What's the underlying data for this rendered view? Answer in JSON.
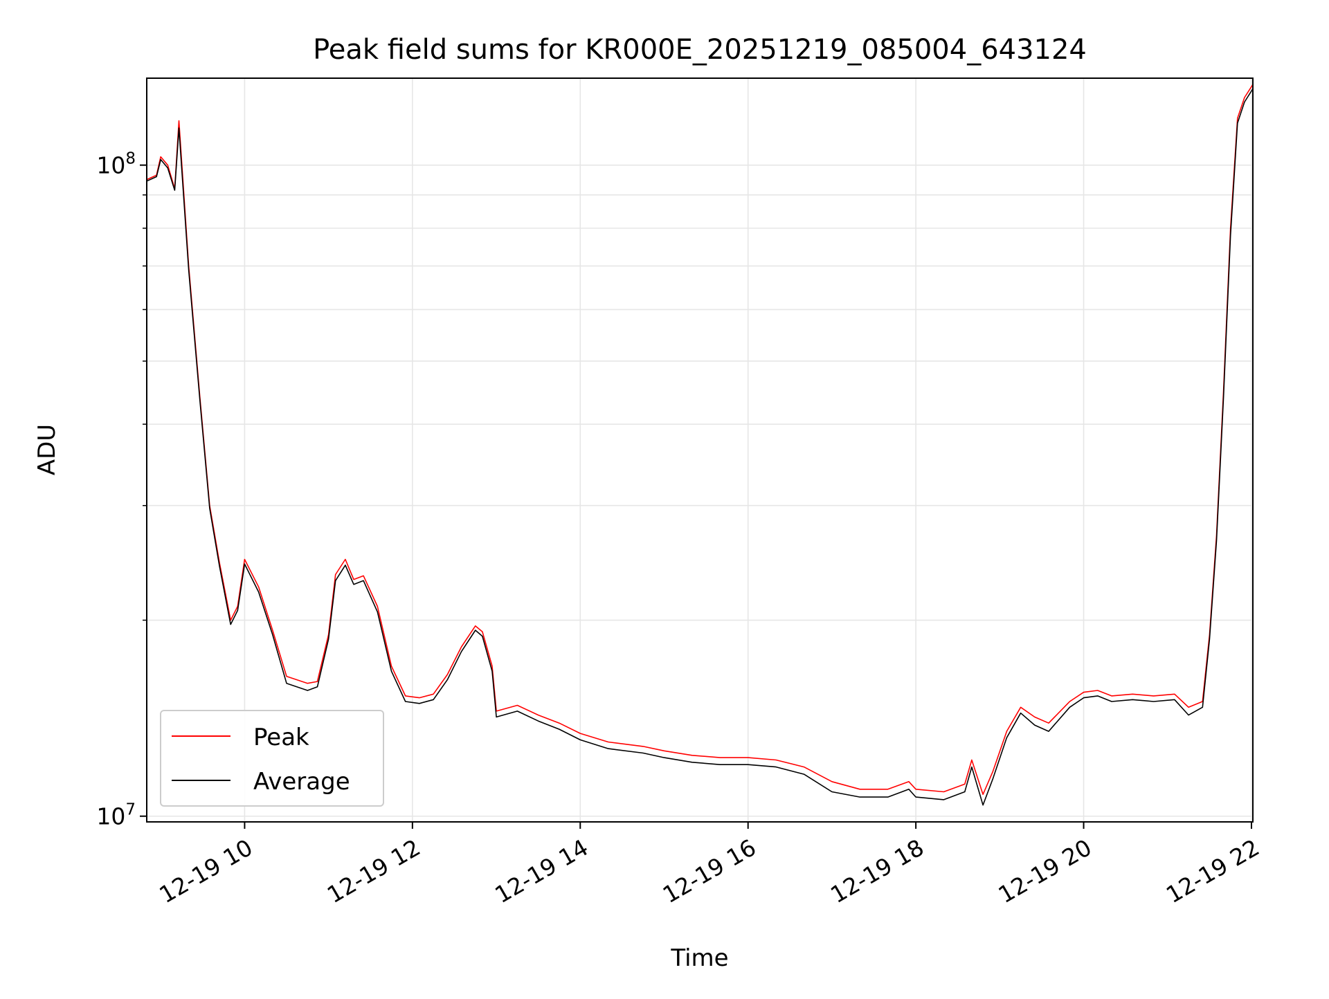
{
  "chart_data": {
    "type": "line",
    "title": "Peak field sums for KR000E_20251219_085004_643124",
    "xlabel": "Time",
    "ylabel": "ADU",
    "y_scale": "log",
    "ylim": [
      9800000,
      136000000
    ],
    "xlim": [
      "2025-12-19 08:50",
      "2025-12-19 22:01"
    ],
    "grid": true,
    "legend_position": "lower-left",
    "x_ticks": [
      {
        "t": "2025-12-19 10:00",
        "label": "12-19 10"
      },
      {
        "t": "2025-12-19 12:00",
        "label": "12-19 12"
      },
      {
        "t": "2025-12-19 14:00",
        "label": "12-19 14"
      },
      {
        "t": "2025-12-19 16:00",
        "label": "12-19 16"
      },
      {
        "t": "2025-12-19 18:00",
        "label": "12-19 18"
      },
      {
        "t": "2025-12-19 20:00",
        "label": "12-19 20"
      },
      {
        "t": "2025-12-19 22:00",
        "label": "12-19 22"
      }
    ],
    "y_ticks": [
      {
        "value": 10000000,
        "base": "10",
        "exp": "7"
      },
      {
        "value": 100000000,
        "base": "10",
        "exp": "8"
      }
    ],
    "y_minor_ticks": [
      20000000,
      30000000,
      40000000,
      50000000,
      60000000,
      70000000,
      80000000,
      90000000
    ],
    "series": [
      {
        "name": "Peak",
        "color": "#ff0000",
        "points": [
          [
            "2025-12-19 08:50",
            95000000
          ],
          [
            "2025-12-19 08:57",
            96500000
          ],
          [
            "2025-12-19 09:00",
            103000000
          ],
          [
            "2025-12-19 09:05",
            100000000
          ],
          [
            "2025-12-19 09:10",
            92000000
          ],
          [
            "2025-12-19 09:13",
            117000000
          ],
          [
            "2025-12-19 09:20",
            70000000
          ],
          [
            "2025-12-19 09:28",
            44000000
          ],
          [
            "2025-12-19 09:35",
            30000000
          ],
          [
            "2025-12-19 09:42",
            24500000
          ],
          [
            "2025-12-19 09:50",
            20000000
          ],
          [
            "2025-12-19 09:55",
            21000000
          ],
          [
            "2025-12-19 10:00",
            24800000
          ],
          [
            "2025-12-19 10:10",
            22500000
          ],
          [
            "2025-12-19 10:20",
            19300000
          ],
          [
            "2025-12-19 10:30",
            16400000
          ],
          [
            "2025-12-19 10:45",
            16000000
          ],
          [
            "2025-12-19 10:52",
            16100000
          ],
          [
            "2025-12-19 11:00",
            19000000
          ],
          [
            "2025-12-19 11:05",
            23500000
          ],
          [
            "2025-12-19 11:12",
            24800000
          ],
          [
            "2025-12-19 11:18",
            23100000
          ],
          [
            "2025-12-19 11:25",
            23400000
          ],
          [
            "2025-12-19 11:35",
            21000000
          ],
          [
            "2025-12-19 11:45",
            17000000
          ],
          [
            "2025-12-19 11:55",
            15300000
          ],
          [
            "2025-12-19 12:05",
            15200000
          ],
          [
            "2025-12-19 12:15",
            15400000
          ],
          [
            "2025-12-19 12:25",
            16500000
          ],
          [
            "2025-12-19 12:35",
            18200000
          ],
          [
            "2025-12-19 12:45",
            19600000
          ],
          [
            "2025-12-19 12:50",
            19200000
          ],
          [
            "2025-12-19 12:57",
            17000000
          ],
          [
            "2025-12-19 13:00",
            14500000
          ],
          [
            "2025-12-19 13:15",
            14800000
          ],
          [
            "2025-12-19 13:30",
            14300000
          ],
          [
            "2025-12-19 13:45",
            13900000
          ],
          [
            "2025-12-19 14:00",
            13400000
          ],
          [
            "2025-12-19 14:20",
            13000000
          ],
          [
            "2025-12-19 14:45",
            12800000
          ],
          [
            "2025-12-19 15:00",
            12600000
          ],
          [
            "2025-12-19 15:20",
            12400000
          ],
          [
            "2025-12-19 15:40",
            12300000
          ],
          [
            "2025-12-19 16:00",
            12300000
          ],
          [
            "2025-12-19 16:20",
            12200000
          ],
          [
            "2025-12-19 16:40",
            11900000
          ],
          [
            "2025-12-19 17:00",
            11300000
          ],
          [
            "2025-12-19 17:20",
            11000000
          ],
          [
            "2025-12-19 17:40",
            11000000
          ],
          [
            "2025-12-19 17:55",
            11300000
          ],
          [
            "2025-12-19 18:00",
            11000000
          ],
          [
            "2025-12-19 18:20",
            10900000
          ],
          [
            "2025-12-19 18:35",
            11200000
          ],
          [
            "2025-12-19 18:40",
            12200000
          ],
          [
            "2025-12-19 18:48",
            10800000
          ],
          [
            "2025-12-19 18:55",
            11700000
          ],
          [
            "2025-12-19 19:05",
            13500000
          ],
          [
            "2025-12-19 19:15",
            14700000
          ],
          [
            "2025-12-19 19:25",
            14200000
          ],
          [
            "2025-12-19 19:35",
            13900000
          ],
          [
            "2025-12-19 19:50",
            15000000
          ],
          [
            "2025-12-19 20:00",
            15500000
          ],
          [
            "2025-12-19 20:10",
            15600000
          ],
          [
            "2025-12-19 20:20",
            15300000
          ],
          [
            "2025-12-19 20:35",
            15400000
          ],
          [
            "2025-12-19 20:50",
            15300000
          ],
          [
            "2025-12-19 21:05",
            15400000
          ],
          [
            "2025-12-19 21:15",
            14700000
          ],
          [
            "2025-12-19 21:25",
            15000000
          ],
          [
            "2025-12-19 21:30",
            19000000
          ],
          [
            "2025-12-19 21:35",
            27000000
          ],
          [
            "2025-12-19 21:40",
            45000000
          ],
          [
            "2025-12-19 21:45",
            80000000
          ],
          [
            "2025-12-19 21:50",
            118000000
          ],
          [
            "2025-12-19 21:55",
            127000000
          ],
          [
            "2025-12-19 22:01",
            133000000
          ]
        ]
      },
      {
        "name": "Average",
        "color": "#000000",
        "points": [
          [
            "2025-12-19 08:50",
            94500000
          ],
          [
            "2025-12-19 08:57",
            96000000
          ],
          [
            "2025-12-19 09:00",
            102000000
          ],
          [
            "2025-12-19 09:05",
            99000000
          ],
          [
            "2025-12-19 09:10",
            91500000
          ],
          [
            "2025-12-19 09:13",
            114000000
          ],
          [
            "2025-12-19 09:20",
            69000000
          ],
          [
            "2025-12-19 09:28",
            43500000
          ],
          [
            "2025-12-19 09:35",
            29700000
          ],
          [
            "2025-12-19 09:42",
            24200000
          ],
          [
            "2025-12-19 09:50",
            19700000
          ],
          [
            "2025-12-19 09:55",
            20700000
          ],
          [
            "2025-12-19 10:00",
            24400000
          ],
          [
            "2025-12-19 10:10",
            22100000
          ],
          [
            "2025-12-19 10:20",
            19000000
          ],
          [
            "2025-12-19 10:30",
            16000000
          ],
          [
            "2025-12-19 10:45",
            15600000
          ],
          [
            "2025-12-19 10:52",
            15800000
          ],
          [
            "2025-12-19 11:00",
            18700000
          ],
          [
            "2025-12-19 11:05",
            23000000
          ],
          [
            "2025-12-19 11:12",
            24300000
          ],
          [
            "2025-12-19 11:18",
            22700000
          ],
          [
            "2025-12-19 11:25",
            23000000
          ],
          [
            "2025-12-19 11:35",
            20600000
          ],
          [
            "2025-12-19 11:45",
            16700000
          ],
          [
            "2025-12-19 11:55",
            15000000
          ],
          [
            "2025-12-19 12:05",
            14900000
          ],
          [
            "2025-12-19 12:15",
            15100000
          ],
          [
            "2025-12-19 12:25",
            16200000
          ],
          [
            "2025-12-19 12:35",
            17900000
          ],
          [
            "2025-12-19 12:45",
            19300000
          ],
          [
            "2025-12-19 12:50",
            18900000
          ],
          [
            "2025-12-19 12:57",
            16700000
          ],
          [
            "2025-12-19 13:00",
            14200000
          ],
          [
            "2025-12-19 13:15",
            14500000
          ],
          [
            "2025-12-19 13:30",
            14000000
          ],
          [
            "2025-12-19 13:45",
            13600000
          ],
          [
            "2025-12-19 14:00",
            13100000
          ],
          [
            "2025-12-19 14:20",
            12700000
          ],
          [
            "2025-12-19 14:45",
            12500000
          ],
          [
            "2025-12-19 15:00",
            12300000
          ],
          [
            "2025-12-19 15:20",
            12100000
          ],
          [
            "2025-12-19 15:40",
            12000000
          ],
          [
            "2025-12-19 16:00",
            12000000
          ],
          [
            "2025-12-19 16:20",
            11900000
          ],
          [
            "2025-12-19 16:40",
            11600000
          ],
          [
            "2025-12-19 17:00",
            10900000
          ],
          [
            "2025-12-19 17:20",
            10700000
          ],
          [
            "2025-12-19 17:40",
            10700000
          ],
          [
            "2025-12-19 17:55",
            11000000
          ],
          [
            "2025-12-19 18:00",
            10700000
          ],
          [
            "2025-12-19 18:20",
            10600000
          ],
          [
            "2025-12-19 18:35",
            10900000
          ],
          [
            "2025-12-19 18:40",
            11900000
          ],
          [
            "2025-12-19 18:48",
            10400000
          ],
          [
            "2025-12-19 18:55",
            11400000
          ],
          [
            "2025-12-19 19:05",
            13200000
          ],
          [
            "2025-12-19 19:15",
            14400000
          ],
          [
            "2025-12-19 19:25",
            13800000
          ],
          [
            "2025-12-19 19:35",
            13500000
          ],
          [
            "2025-12-19 19:50",
            14700000
          ],
          [
            "2025-12-19 20:00",
            15200000
          ],
          [
            "2025-12-19 20:10",
            15300000
          ],
          [
            "2025-12-19 20:20",
            15000000
          ],
          [
            "2025-12-19 20:35",
            15100000
          ],
          [
            "2025-12-19 20:50",
            15000000
          ],
          [
            "2025-12-19 21:05",
            15100000
          ],
          [
            "2025-12-19 21:15",
            14300000
          ],
          [
            "2025-12-19 21:25",
            14700000
          ],
          [
            "2025-12-19 21:30",
            18700000
          ],
          [
            "2025-12-19 21:35",
            26500000
          ],
          [
            "2025-12-19 21:40",
            44000000
          ],
          [
            "2025-12-19 21:45",
            78000000
          ],
          [
            "2025-12-19 21:50",
            116000000
          ],
          [
            "2025-12-19 21:55",
            125000000
          ],
          [
            "2025-12-19 22:01",
            131000000
          ]
        ]
      }
    ]
  }
}
